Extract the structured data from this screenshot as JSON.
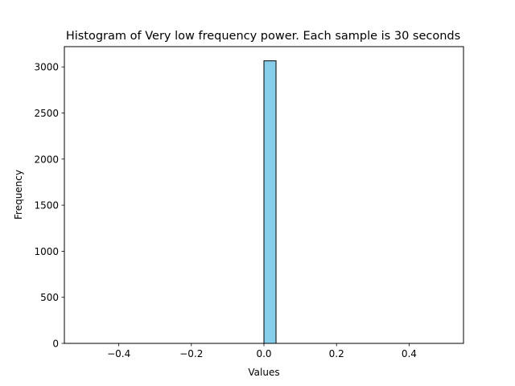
{
  "chart_data": {
    "type": "bar",
    "title": "Histogram of Very low frequency power. Each sample is 30 seconds",
    "xlabel": "Values",
    "ylabel": "Frequency",
    "xlim": [
      -0.55,
      0.55
    ],
    "ylim": [
      0,
      3220
    ],
    "x_ticks": [
      -0.4,
      -0.2,
      0.0,
      0.2,
      0.4
    ],
    "x_tick_labels": [
      "−0.4",
      "−0.2",
      "0.0",
      "0.2",
      "0.4"
    ],
    "y_ticks": [
      0,
      500,
      1000,
      1500,
      2000,
      2500,
      3000
    ],
    "y_tick_labels": [
      "0",
      "500",
      "1000",
      "1500",
      "2000",
      "2500",
      "3000"
    ],
    "bin_range": [
      -0.5,
      0.5
    ],
    "bins": 30,
    "counts": [
      0,
      0,
      0,
      0,
      0,
      0,
      0,
      0,
      0,
      0,
      0,
      0,
      0,
      0,
      0,
      3066,
      0,
      0,
      0,
      0,
      0,
      0,
      0,
      0,
      0,
      0,
      0,
      0,
      0,
      0
    ],
    "bar_color": "#87ceeb",
    "edge_color": "#000000",
    "grid": false,
    "legend": "none"
  }
}
